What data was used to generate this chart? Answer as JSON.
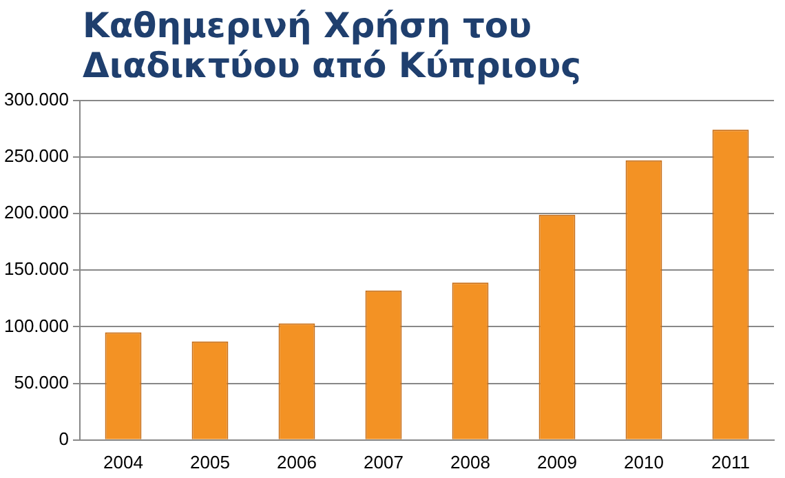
{
  "chart_data": {
    "type": "bar",
    "title": "Καθημερινή Χρήση του Διαδικτύου από Κύπριους",
    "categories": [
      "2004",
      "2005",
      "2006",
      "2007",
      "2008",
      "2009",
      "2010",
      "2011"
    ],
    "values": [
      95000,
      87000,
      103000,
      132000,
      139000,
      199000,
      247000,
      274000
    ],
    "color": "#f39224",
    "ylim": [
      0,
      300000
    ],
    "yticks": [
      0,
      {
        "value": 50000,
        "label": "50.000"
      },
      {
        "value": 100000,
        "label": "100.000"
      },
      {
        "value": 150000,
        "label": "150.000"
      },
      {
        "value": 200000,
        "label": "200.000"
      },
      {
        "value": 250000,
        "label": "250.000"
      },
      {
        "value": 300000,
        "label": "300.000"
      }
    ],
    "grid": "y",
    "legend": false
  }
}
